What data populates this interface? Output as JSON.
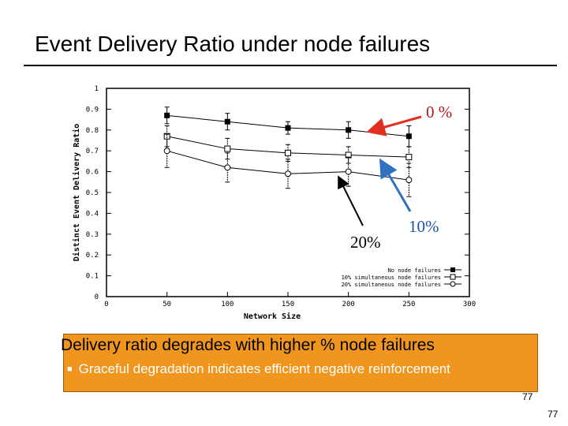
{
  "slide": {
    "title": "Event Delivery Ratio under node failures",
    "annotations": {
      "zero": "0 %",
      "ten": "10%",
      "twenty": "20%"
    },
    "summary": {
      "main": "Delivery ratio degrades with higher % node failures",
      "bullet": "Graceful degradation indicates efficient negative reinforcement",
      "bullet_icon": "square-bullet-icon"
    },
    "page_number_box": "77",
    "page_number": "77",
    "colors": {
      "arrow_red": "#e03020",
      "arrow_blue": "#3070c0",
      "arrow_black": "#000000",
      "box_fill": "#f0961e"
    }
  },
  "chart_data": {
    "type": "line",
    "xlabel": "Network Size",
    "ylabel": "Distinct Event Delivery Ratio",
    "xlim": [
      0,
      300
    ],
    "ylim": [
      0,
      1
    ],
    "xticks": [
      0,
      50,
      100,
      150,
      200,
      250,
      300
    ],
    "yticks": [
      0,
      0.1,
      0.2,
      0.3,
      0.4,
      0.5,
      0.6,
      0.7,
      0.8,
      0.9,
      1
    ],
    "x": [
      50,
      100,
      150,
      200,
      250
    ],
    "series": [
      {
        "name": "No node failures",
        "marker": "filled-square",
        "values": [
          0.87,
          0.84,
          0.81,
          0.8,
          0.77
        ],
        "err": [
          0.04,
          0.04,
          0.03,
          0.04,
          0.05
        ]
      },
      {
        "name": "10% simultaneous node failures",
        "marker": "open-square",
        "values": [
          0.77,
          0.71,
          0.69,
          0.68,
          0.67
        ],
        "err": [
          0.05,
          0.05,
          0.04,
          0.04,
          0.05
        ]
      },
      {
        "name": "20% simultaneous node failures",
        "marker": "open-circle",
        "values": [
          0.7,
          0.62,
          0.59,
          0.6,
          0.56
        ],
        "err": [
          0.08,
          0.07,
          0.07,
          0.07,
          0.08
        ]
      }
    ],
    "legend_position": "bottom-right",
    "grid": false
  }
}
